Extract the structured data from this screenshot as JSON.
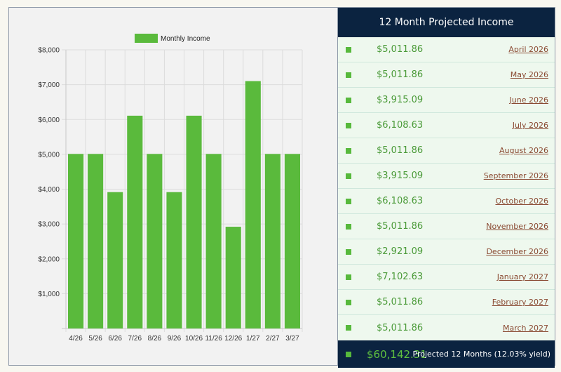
{
  "chart_data": {
    "type": "bar",
    "title": "",
    "xlabel": "",
    "ylabel": "",
    "legend": {
      "label": "Monthly Income",
      "position": "top-center"
    },
    "categories": [
      "4/26",
      "5/26",
      "6/26",
      "7/26",
      "8/26",
      "9/26",
      "10/26",
      "11/26",
      "12/26",
      "1/27",
      "2/27",
      "3/27"
    ],
    "series": [
      {
        "name": "Monthly Income",
        "color": "#5aba3c",
        "values": [
          5011.86,
          5011.86,
          3915.09,
          6108.63,
          5011.86,
          3915.09,
          6108.63,
          5011.86,
          2921.09,
          7102.63,
          5011.86,
          5011.86
        ]
      }
    ],
    "ylim": [
      0,
      8000
    ],
    "yticks": [
      1000,
      2000,
      3000,
      4000,
      5000,
      6000,
      7000,
      8000
    ],
    "ytick_labels": [
      "$1,000",
      "$2,000",
      "$3,000",
      "$4,000",
      "$5,000",
      "$6,000",
      "$7,000",
      "$8,000"
    ],
    "grid": true
  },
  "panel": {
    "title": "12 Month Projected Income",
    "rows": [
      {
        "amount": "$5,011.86",
        "month": "April 2026"
      },
      {
        "amount": "$5,011.86",
        "month": "May 2026"
      },
      {
        "amount": "$3,915.09",
        "month": "June 2026"
      },
      {
        "amount": "$6,108.63",
        "month": "July 2026"
      },
      {
        "amount": "$5,011.86",
        "month": "August 2026"
      },
      {
        "amount": "$3,915.09",
        "month": "September 2026"
      },
      {
        "amount": "$6,108.63",
        "month": "October 2026"
      },
      {
        "amount": "$5,011.86",
        "month": "November 2026"
      },
      {
        "amount": "$2,921.09",
        "month": "December 2026"
      },
      {
        "amount": "$7,102.63",
        "month": "January 2027"
      },
      {
        "amount": "$5,011.86",
        "month": "February 2027"
      },
      {
        "amount": "$5,011.86",
        "month": "March 2027"
      }
    ],
    "total": {
      "amount": "$60,142.31",
      "label": "Projected 12 Months (12.03% yield)"
    },
    "colors": {
      "header": "#0b2340",
      "accent": "#57b93c",
      "link": "#8a4a32"
    }
  }
}
